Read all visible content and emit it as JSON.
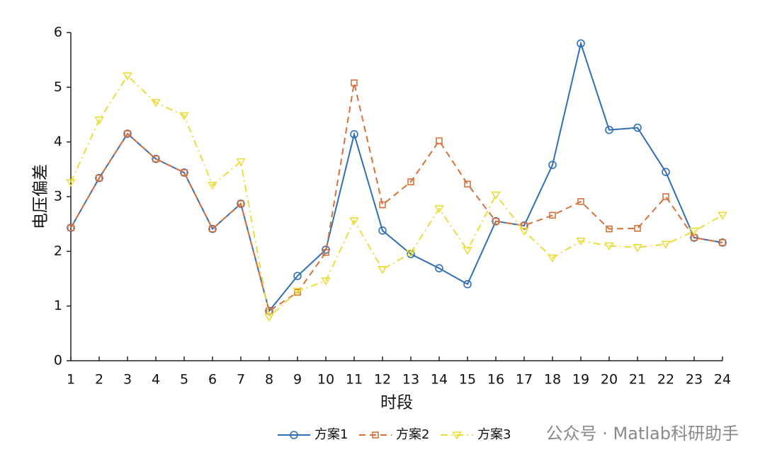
{
  "chart_data": {
    "type": "line",
    "xlabel": "时段",
    "ylabel": "电压偏差",
    "x": [
      1,
      2,
      3,
      4,
      5,
      6,
      7,
      8,
      9,
      10,
      11,
      12,
      13,
      14,
      15,
      16,
      17,
      18,
      19,
      20,
      21,
      22,
      23,
      24
    ],
    "xlim": [
      1,
      24
    ],
    "xticks": [
      1,
      2,
      3,
      4,
      5,
      6,
      7,
      8,
      9,
      10,
      11,
      12,
      13,
      14,
      15,
      16,
      17,
      18,
      19,
      20,
      21,
      22,
      23,
      24
    ],
    "ylim": [
      0,
      6
    ],
    "yticks": [
      0,
      1,
      2,
      3,
      4,
      5,
      6
    ],
    "legend": "bottom",
    "watermark": "公众号 · Matlab科研助手",
    "series": [
      {
        "name": "方案1",
        "color": "#2e6fb7",
        "marker": "circle",
        "dash": "solid",
        "values": [
          2.43,
          3.34,
          4.15,
          3.69,
          3.44,
          2.41,
          2.87,
          0.91,
          1.55,
          2.03,
          4.14,
          2.38,
          1.95,
          1.69,
          1.4,
          2.55,
          2.47,
          3.58,
          5.8,
          4.22,
          4.26,
          3.45,
          2.25,
          2.16
        ]
      },
      {
        "name": "方案2",
        "color": "#d9703a",
        "marker": "square",
        "dash": "dashed",
        "values": [
          2.43,
          3.34,
          4.15,
          3.69,
          3.44,
          2.41,
          2.87,
          0.91,
          1.25,
          1.98,
          5.08,
          2.85,
          3.27,
          4.02,
          3.23,
          2.55,
          2.47,
          2.66,
          2.91,
          2.41,
          2.42,
          3.0,
          2.25,
          2.16
        ]
      },
      {
        "name": "方案3",
        "color": "#ecdc3c",
        "marker": "triangle-down",
        "dash": "dashdot",
        "values": [
          3.26,
          4.4,
          5.21,
          4.72,
          4.48,
          3.21,
          3.64,
          0.8,
          1.27,
          1.46,
          2.56,
          1.67,
          1.97,
          2.78,
          2.02,
          3.03,
          2.37,
          1.88,
          2.19,
          2.1,
          2.07,
          2.13,
          2.37,
          2.66
        ]
      }
    ]
  }
}
